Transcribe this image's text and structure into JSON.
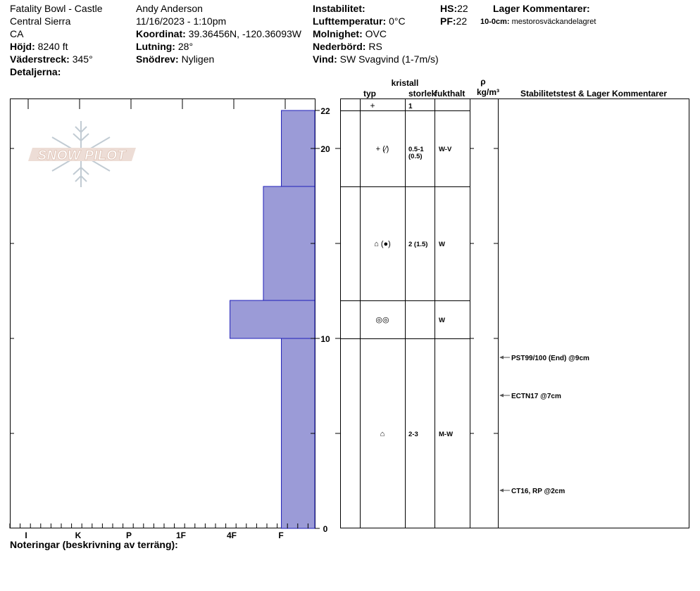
{
  "header": {
    "location_line1": "Fatality Bowl - Castle",
    "location_line2": "Central Sierra",
    "location_line3": "CA",
    "elevation_label": "Höjd:",
    "elevation_value": "8240 ft",
    "aspect_label": "Väderstreck:",
    "aspect_value": "345°",
    "details_label": "Detaljerna:",
    "observer": "Andy Anderson",
    "datetime": "11/16/2023 - 1:10pm",
    "coordinate_label": "Koordinat:",
    "coordinate_value": "39.36456N, -120.36093W",
    "slope_label": "Lutning:",
    "slope_value": "28°",
    "drift_label": "Snödrev:",
    "drift_value": "Nyligen",
    "instability_label": "Instabilitet:",
    "air_temp_label": "Lufttemperatur:",
    "air_temp_value": "0°C",
    "cloud_label": "Molnighet:",
    "cloud_value": "OVC",
    "precip_label": "Nederbörd:",
    "precip_value": "RS",
    "wind_label": "Vind:",
    "wind_value": "SW Svagvind (1-7m/s)",
    "hs_label": "HS:",
    "hs_value": "22",
    "pf_label": "PF:",
    "pf_value": "22",
    "layer_comments_label": "Lager Kommentarer:",
    "layer_comment_range": "10-0cm:",
    "layer_comment_text": "mestorosväckandelagret"
  },
  "logo": {
    "text": "SNOW PILOT"
  },
  "columns": {
    "type": "typ",
    "crystal": "kristall",
    "size": "storlek",
    "moisture": "fukthalt",
    "rho": "ρ",
    "density_unit": "kg/m³",
    "stability": "Stabilitetstest & Lager Kommentarer"
  },
  "notes_label": "Noteringar (beskrivning av terräng):",
  "chart_data": {
    "type": "bar",
    "description_axis": "hardness profile",
    "hardness_categories": [
      "I",
      "K",
      "P",
      "1F",
      "4F",
      "F"
    ],
    "height_ticks": [
      0,
      10,
      20,
      22
    ],
    "height_range_cm": [
      0,
      22
    ],
    "layers": [
      {
        "top": 22,
        "bottom": 18,
        "hardness": "F",
        "hardness_index": 0.65,
        "type": "+ (⁄)",
        "size": "0.5-1",
        "size2": "(0.5)",
        "moisture": "W-V"
      },
      {
        "top": 18,
        "bottom": 12,
        "hardness": "F+",
        "hardness_index": 1.0,
        "type": "⌂ (●)",
        "size": "2 (1.5)",
        "size2": "",
        "moisture": "W"
      },
      {
        "top": 12,
        "bottom": 10,
        "hardness": "4F",
        "hardness_index": 1.65,
        "type": "◎◎",
        "size": "",
        "size2": "",
        "moisture": "W"
      },
      {
        "top": 10,
        "bottom": 0,
        "hardness": "F",
        "hardness_index": 0.65,
        "type": "⌂",
        "size": "2-3",
        "size2": "",
        "moisture": "M-W"
      }
    ],
    "surface": {
      "type": "+",
      "size": "1"
    },
    "stability_tests": [
      {
        "depth": 9,
        "text": "PST99/100 (End) @9cm"
      },
      {
        "depth": 7,
        "text": "ECTN17 @7cm"
      },
      {
        "depth": 2,
        "text": "CT16, RP @2cm"
      }
    ]
  }
}
